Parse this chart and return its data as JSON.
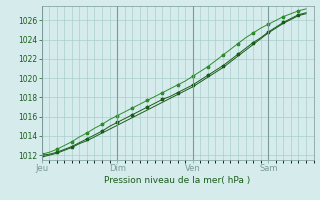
{
  "xlabel": "Pression niveau de la mer( hPa )",
  "ylim": [
    1011.5,
    1027.5
  ],
  "yticks": [
    1012,
    1014,
    1016,
    1018,
    1020,
    1022,
    1024,
    1026
  ],
  "xtick_labels": [
    "Jeu",
    "Dim",
    "Ven",
    "Sam"
  ],
  "xtick_positions": [
    0,
    30,
    60,
    90
  ],
  "xlim": [
    0,
    108
  ],
  "bg_color": "#d6ecec",
  "grid_color": "#aacece",
  "line_color1": "#1a5c1a",
  "line_color2": "#2e8b2e",
  "series1_x": [
    0,
    3,
    6,
    9,
    12,
    15,
    18,
    21,
    24,
    27,
    30,
    33,
    36,
    39,
    42,
    45,
    48,
    51,
    54,
    57,
    60,
    63,
    66,
    69,
    72,
    75,
    78,
    81,
    84,
    87,
    90,
    93,
    96,
    99,
    102,
    105
  ],
  "series1_y": [
    1012.0,
    1012.1,
    1012.3,
    1012.6,
    1012.9,
    1013.3,
    1013.7,
    1014.1,
    1014.5,
    1015.0,
    1015.4,
    1015.8,
    1016.2,
    1016.6,
    1017.0,
    1017.4,
    1017.8,
    1018.1,
    1018.5,
    1018.9,
    1019.3,
    1019.8,
    1020.3,
    1020.8,
    1021.3,
    1021.9,
    1022.5,
    1023.1,
    1023.7,
    1024.2,
    1024.8,
    1025.3,
    1025.8,
    1026.2,
    1026.6,
    1026.8
  ],
  "series2_x": [
    0,
    3,
    6,
    9,
    12,
    15,
    18,
    21,
    24,
    27,
    30,
    33,
    36,
    39,
    42,
    45,
    48,
    51,
    54,
    57,
    60,
    63,
    66,
    69,
    72,
    75,
    78,
    81,
    84,
    87,
    90,
    93,
    96,
    99,
    102,
    105
  ],
  "series2_y": [
    1012.1,
    1012.3,
    1012.6,
    1013.0,
    1013.4,
    1013.9,
    1014.3,
    1014.8,
    1015.2,
    1015.7,
    1016.1,
    1016.5,
    1016.9,
    1017.3,
    1017.7,
    1018.1,
    1018.5,
    1018.9,
    1019.3,
    1019.7,
    1020.2,
    1020.7,
    1021.2,
    1021.8,
    1022.4,
    1023.0,
    1023.6,
    1024.2,
    1024.7,
    1025.2,
    1025.6,
    1026.0,
    1026.4,
    1026.7,
    1027.0,
    1027.2
  ],
  "series3_x": [
    0,
    3,
    6,
    9,
    12,
    15,
    18,
    21,
    24,
    27,
    30,
    33,
    36,
    39,
    42,
    45,
    48,
    51,
    54,
    57,
    60,
    63,
    66,
    69,
    72,
    75,
    78,
    81,
    84,
    87,
    90,
    93,
    96,
    99,
    102,
    105
  ],
  "series3_y": [
    1011.8,
    1012.0,
    1012.2,
    1012.5,
    1012.8,
    1013.2,
    1013.5,
    1013.9,
    1014.3,
    1014.7,
    1015.1,
    1015.5,
    1015.9,
    1016.3,
    1016.7,
    1017.1,
    1017.5,
    1017.9,
    1018.3,
    1018.7,
    1019.1,
    1019.6,
    1020.1,
    1020.6,
    1021.1,
    1021.7,
    1022.3,
    1022.9,
    1023.5,
    1024.1,
    1024.7,
    1025.2,
    1025.7,
    1026.1,
    1026.5,
    1026.7
  ]
}
